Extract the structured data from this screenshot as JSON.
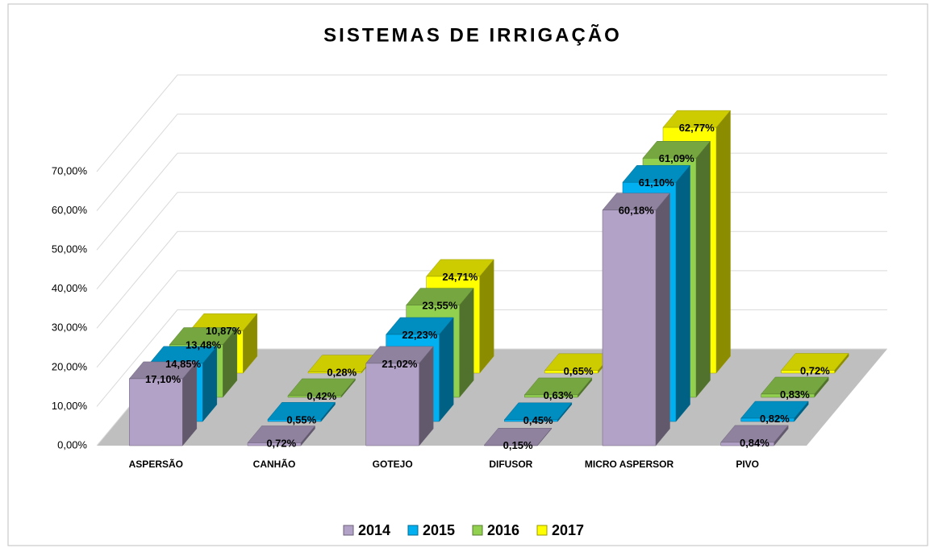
{
  "chart_data": {
    "type": "bar3d",
    "title": "SISTEMAS DE IRRIGAÇÃO",
    "categories": [
      "ASPERSÃO",
      "CANHÃO",
      "GOTEJO",
      "DIFUSOR",
      "MICRO ASPERSOR",
      "PIVO"
    ],
    "series": [
      {
        "name": "2014",
        "color": "#b3a2c7",
        "values": [
          17.1,
          0.72,
          21.02,
          0.15,
          60.18,
          0.84
        ],
        "value_labels": [
          "17,10%",
          "0,72%",
          "21,02%",
          "0,15%",
          "60,18%",
          "0,84%"
        ]
      },
      {
        "name": "2015",
        "color": "#00b0f0",
        "values": [
          14.85,
          0.55,
          22.23,
          0.45,
          61.1,
          0.82
        ],
        "value_labels": [
          "14,85%",
          "0,55%",
          "22,23%",
          "0,45%",
          "61,10%",
          "0,82%"
        ]
      },
      {
        "name": "2016",
        "color": "#92d050",
        "values": [
          13.48,
          0.42,
          23.55,
          0.63,
          61.09,
          0.83
        ],
        "value_labels": [
          "13,48%",
          "0,42%",
          "23,55%",
          "0,63%",
          "61,09%",
          "0,83%"
        ]
      },
      {
        "name": "2017",
        "color": "#ffff00",
        "values": [
          10.87,
          0.28,
          24.71,
          0.65,
          62.77,
          0.72
        ],
        "value_labels": [
          "10,87%",
          "0,28%",
          "24,71%",
          "0,65%",
          "62,77%",
          "0,72%"
        ]
      }
    ],
    "ylim": [
      0,
      70
    ],
    "yticks": [
      {
        "value": 0,
        "label": "0,00%"
      },
      {
        "value": 10,
        "label": "10,00%"
      },
      {
        "value": 20,
        "label": "20,00%"
      },
      {
        "value": 30,
        "label": "30,00%"
      },
      {
        "value": 40,
        "label": "40,00%"
      },
      {
        "value": 50,
        "label": "50,00%"
      },
      {
        "value": 60,
        "label": "60,00%"
      },
      {
        "value": 70,
        "label": "70,00%"
      }
    ],
    "grid": true,
    "legend": "bottom"
  }
}
